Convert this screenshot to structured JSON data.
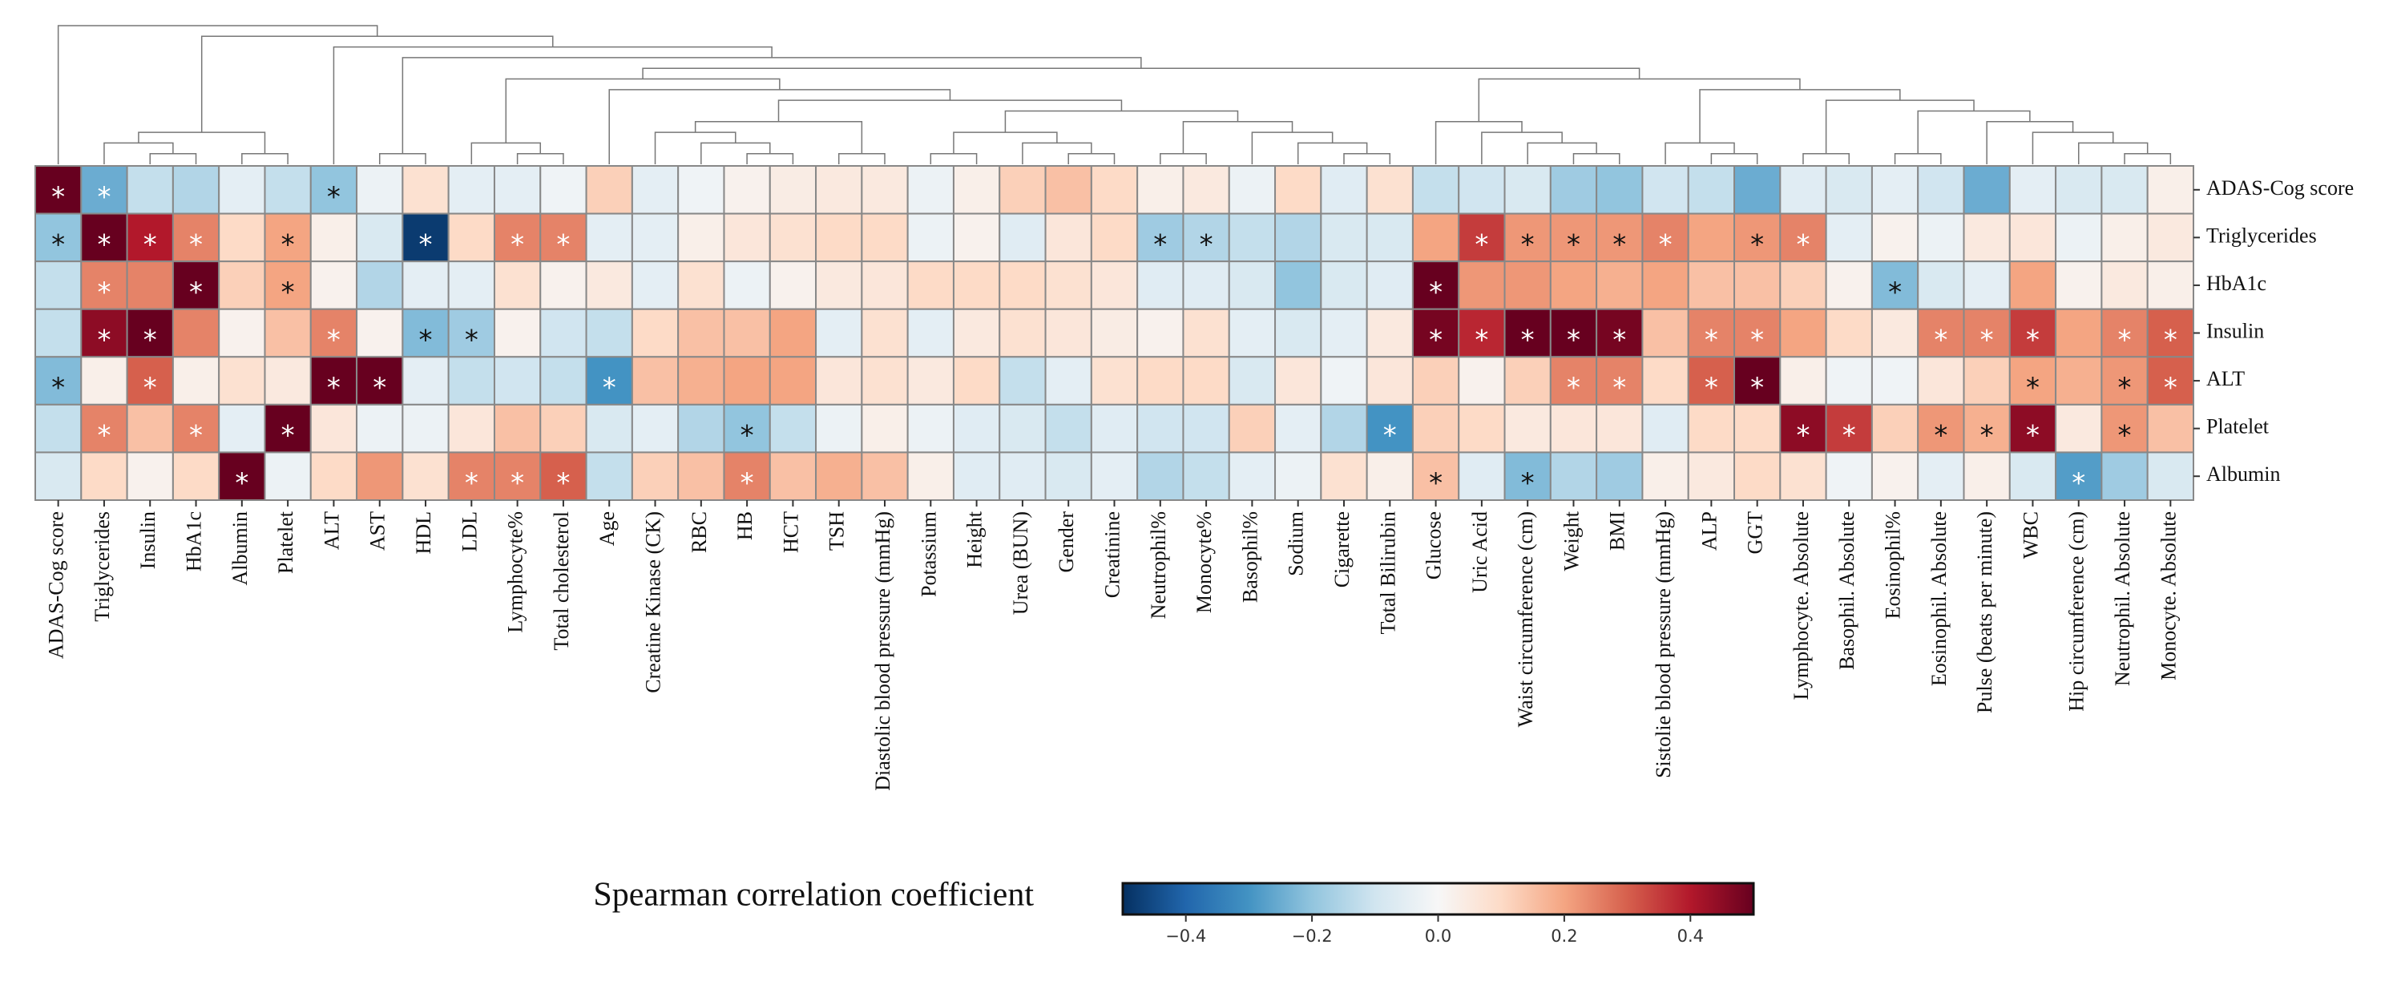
{
  "chart_data": {
    "type": "heatmap",
    "x_categories": [
      "ADAS-Cog score",
      "Triglycerides",
      "Insulin",
      "HbA1c",
      "Albumin",
      "Platelet",
      "ALT",
      "AST",
      "HDL",
      "LDL",
      "Lymphocyte%",
      "Total cholesterol",
      "Age",
      "Creatine Kinase (CK)",
      "RBC",
      "HB",
      "HCT",
      "TSH",
      "Diastolic blood pressure (mmHg)",
      "Potassium",
      "Height",
      "Urea (BUN)",
      "Gender",
      "Creatinine",
      "Neutrophil%",
      "Monocyte%",
      "Basophil%",
      "Sodium",
      "Cigarette",
      "Total Bilirubin",
      "Glucose",
      "Uric Acid",
      "Waist circumference (cm)",
      "Weight",
      "BMI",
      "Sistolie blood pressure (mmHg)",
      "ALP",
      "GGT",
      "Lymphocyte. Absolute",
      "Basophil. Absolute",
      "Eosinophil%",
      "Eosinophil. Absolute",
      "Pulse (beats per minute)",
      "WBC",
      "Hip circumference (cm)",
      "Neutrophil. Absolute",
      "Monocyte. Absolute"
    ],
    "y_categories": [
      "ADAS-Cog score",
      "Triglycerides",
      "HbA1c",
      "Insulin",
      "ALT",
      "Platelet",
      "Albumin"
    ],
    "values": [
      [
        0.5,
        -0.25,
        -0.12,
        -0.15,
        -0.05,
        -0.12,
        -0.2,
        -0.03,
        0.08,
        -0.05,
        -0.05,
        -0.02,
        0.12,
        -0.05,
        -0.02,
        0.02,
        0.04,
        0.05,
        0.05,
        -0.03,
        0.03,
        0.12,
        0.15,
        0.1,
        0.03,
        0.05,
        -0.03,
        0.1,
        -0.06,
        0.08,
        -0.12,
        -0.1,
        -0.08,
        -0.18,
        -0.2,
        -0.1,
        -0.12,
        -0.25,
        -0.06,
        -0.08,
        -0.05,
        -0.1,
        -0.25,
        -0.05,
        -0.08,
        -0.08,
        0.03
      ],
      [
        -0.2,
        0.5,
        0.4,
        0.25,
        0.1,
        0.2,
        0.03,
        -0.08,
        -0.48,
        0.1,
        0.25,
        0.25,
        -0.05,
        -0.05,
        0.03,
        0.06,
        0.08,
        0.1,
        0.1,
        -0.03,
        0.02,
        -0.06,
        0.06,
        0.1,
        -0.18,
        -0.15,
        -0.12,
        -0.15,
        -0.08,
        -0.08,
        0.2,
        0.35,
        0.22,
        0.22,
        0.22,
        0.25,
        0.2,
        0.22,
        0.25,
        -0.05,
        0.02,
        -0.03,
        0.05,
        0.06,
        -0.03,
        0.03,
        0.05
      ],
      [
        -0.12,
        0.25,
        0.25,
        0.5,
        0.12,
        0.2,
        0.02,
        -0.15,
        -0.05,
        -0.05,
        0.08,
        0.02,
        0.05,
        -0.05,
        0.08,
        -0.03,
        0.02,
        0.05,
        0.06,
        0.1,
        0.1,
        0.1,
        0.08,
        0.06,
        -0.06,
        -0.06,
        -0.08,
        -0.2,
        -0.08,
        -0.06,
        0.5,
        0.22,
        0.22,
        0.2,
        0.18,
        0.2,
        0.15,
        0.15,
        0.12,
        0.02,
        -0.22,
        -0.08,
        -0.05,
        0.2,
        0.02,
        0.05,
        0.03
      ],
      [
        -0.12,
        0.45,
        0.5,
        0.25,
        0.02,
        0.15,
        0.25,
        0.02,
        -0.22,
        -0.18,
        0.02,
        -0.1,
        -0.12,
        0.1,
        0.15,
        0.15,
        0.2,
        -0.05,
        0.08,
        -0.05,
        0.05,
        0.08,
        0.06,
        0.04,
        0.02,
        0.08,
        -0.05,
        -0.08,
        -0.05,
        0.05,
        0.48,
        0.38,
        0.5,
        0.5,
        0.48,
        0.15,
        0.25,
        0.25,
        0.2,
        0.1,
        0.05,
        0.25,
        0.25,
        0.35,
        0.2,
        0.25,
        0.3
      ],
      [
        -0.22,
        0.03,
        0.3,
        0.03,
        0.08,
        0.05,
        0.5,
        0.5,
        -0.05,
        -0.12,
        -0.1,
        -0.12,
        -0.3,
        0.15,
        0.18,
        0.2,
        0.2,
        0.06,
        0.08,
        0.05,
        0.1,
        -0.12,
        -0.05,
        0.08,
        0.1,
        0.1,
        -0.08,
        0.06,
        -0.02,
        0.06,
        0.12,
        0.02,
        0.12,
        0.25,
        0.25,
        0.1,
        0.3,
        0.5,
        0.03,
        -0.02,
        -0.02,
        0.06,
        0.12,
        0.2,
        0.18,
        0.22,
        0.3
      ],
      [
        -0.12,
        0.25,
        0.15,
        0.25,
        -0.05,
        0.5,
        0.06,
        -0.03,
        -0.03,
        0.06,
        0.15,
        0.12,
        -0.08,
        -0.05,
        -0.15,
        -0.2,
        -0.12,
        -0.03,
        0.03,
        -0.03,
        -0.06,
        -0.08,
        -0.12,
        -0.06,
        -0.1,
        -0.1,
        0.12,
        -0.05,
        -0.15,
        -0.3,
        0.12,
        0.1,
        0.05,
        0.06,
        0.06,
        -0.06,
        0.1,
        0.1,
        0.45,
        0.35,
        0.12,
        0.22,
        0.18,
        0.45,
        0.05,
        0.22,
        0.15
      ],
      [
        -0.08,
        0.1,
        0.02,
        0.1,
        0.5,
        -0.03,
        0.1,
        0.22,
        0.08,
        0.25,
        0.25,
        0.3,
        -0.12,
        0.12,
        0.15,
        0.25,
        0.15,
        0.18,
        0.15,
        0.03,
        -0.06,
        -0.06,
        -0.08,
        -0.05,
        -0.15,
        -0.12,
        -0.05,
        -0.03,
        0.08,
        0.03,
        0.15,
        -0.06,
        -0.22,
        -0.15,
        -0.18,
        0.03,
        0.05,
        0.1,
        0.08,
        -0.02,
        0.02,
        -0.05,
        0.03,
        -0.08,
        -0.28,
        -0.18,
        -0.08
      ]
    ],
    "annotations": [
      [
        "*",
        "*",
        null,
        null,
        null,
        null,
        "*",
        null,
        null,
        null,
        null,
        null,
        null,
        null,
        null,
        null,
        null,
        null,
        null,
        null,
        null,
        null,
        null,
        null,
        null,
        null,
        null,
        null,
        null,
        null,
        null,
        null,
        null,
        null,
        null,
        null,
        null,
        null,
        null,
        null,
        null,
        null,
        null,
        null,
        null,
        null,
        null
      ],
      [
        "*",
        "*",
        "*",
        "*",
        null,
        "*",
        null,
        null,
        "*",
        null,
        "*",
        "*",
        null,
        null,
        null,
        null,
        null,
        null,
        null,
        null,
        null,
        null,
        null,
        null,
        "*",
        "*",
        null,
        null,
        null,
        null,
        null,
        "*",
        "*",
        "*",
        "*",
        "*",
        null,
        "*",
        "*",
        null,
        null,
        null,
        null,
        null,
        null,
        null,
        null
      ],
      [
        null,
        "*",
        null,
        "*",
        null,
        "*",
        null,
        null,
        null,
        null,
        null,
        null,
        null,
        null,
        null,
        null,
        null,
        null,
        null,
        null,
        null,
        null,
        null,
        null,
        null,
        null,
        null,
        null,
        null,
        null,
        "*",
        null,
        null,
        null,
        null,
        null,
        null,
        null,
        null,
        null,
        "*",
        null,
        null,
        null,
        null,
        null,
        null
      ],
      [
        null,
        "*",
        "*",
        null,
        null,
        null,
        "*",
        null,
        "*",
        "*",
        null,
        null,
        null,
        null,
        null,
        null,
        null,
        null,
        null,
        null,
        null,
        null,
        null,
        null,
        null,
        null,
        null,
        null,
        null,
        null,
        "*",
        "*",
        "*",
        "*",
        "*",
        null,
        "*",
        "*",
        null,
        null,
        null,
        "*",
        "*",
        "*",
        null,
        "*",
        "*"
      ],
      [
        "*",
        null,
        "*",
        null,
        null,
        null,
        "*",
        "*",
        null,
        null,
        null,
        null,
        "*",
        null,
        null,
        null,
        null,
        null,
        null,
        null,
        null,
        null,
        null,
        null,
        null,
        null,
        null,
        null,
        null,
        null,
        null,
        null,
        null,
        "*",
        "*",
        null,
        "*",
        "*",
        null,
        null,
        null,
        null,
        null,
        "*",
        null,
        "*",
        "*"
      ],
      [
        null,
        "*",
        null,
        "*",
        null,
        "*",
        null,
        null,
        null,
        null,
        null,
        null,
        null,
        null,
        null,
        "*",
        null,
        null,
        null,
        null,
        null,
        null,
        null,
        null,
        null,
        null,
        null,
        null,
        null,
        "*",
        null,
        null,
        null,
        null,
        null,
        null,
        null,
        null,
        "*",
        "*",
        null,
        "*",
        "*",
        "*",
        null,
        "*",
        null
      ],
      [
        null,
        null,
        null,
        null,
        "*",
        null,
        null,
        null,
        null,
        "*",
        "*",
        "*",
        null,
        null,
        null,
        "*",
        null,
        null,
        null,
        null,
        null,
        null,
        null,
        null,
        null,
        null,
        null,
        null,
        null,
        null,
        "*",
        null,
        "*",
        null,
        null,
        null,
        null,
        null,
        null,
        null,
        null,
        null,
        null,
        null,
        "*",
        null,
        null
      ]
    ],
    "cmap": "RdBu_r",
    "colorbar_label": "Spearman correlation coefficient",
    "clim": [
      -0.5,
      0.5
    ],
    "cticks": [
      {
        "value": -0.4,
        "label": "−0.4"
      },
      {
        "value": -0.2,
        "label": "−0.2"
      },
      {
        "value": 0,
        "label": "0.0"
      },
      0.2,
      0.4
    ]
  }
}
